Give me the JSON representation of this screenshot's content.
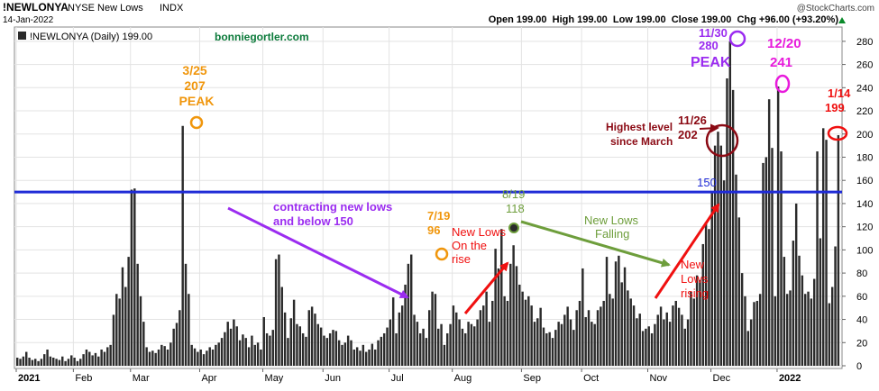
{
  "header": {
    "symbol": "!NEWLONYA",
    "exchange": "NYSE New Lows",
    "type": "INDX",
    "date": "14-Jan-2022",
    "copyright": "@StockCharts.com",
    "ohlc_text": "Open 199.00  High 199.00  Low 199.00  Close 199.00  Chg +96.00 (+93.20%)",
    "legend": "!NEWLONYA (Daily) 199.00",
    "watermark": "bonniegortler.com"
  },
  "colors": {
    "bars": "#2b2b2b",
    "hline": "#1f2bd6",
    "orange": "#f0960c",
    "purple": "#9b2cf0",
    "magenta": "#e81adc",
    "red": "#f01010",
    "darkred": "#8b0a14",
    "green": "#6e9e3c",
    "ma_green": "#0b7a3a"
  },
  "chart_data": {
    "type": "bar",
    "title": "!NEWLONYA NYSE New Lows INDX",
    "series_name": "!NEWLONYA (Daily)",
    "ylim": [
      0,
      290
    ],
    "yticks": [
      0,
      20,
      40,
      60,
      80,
      100,
      120,
      140,
      160,
      180,
      200,
      220,
      240,
      260,
      280
    ],
    "x_labels": [
      "2021",
      "Feb",
      "Mar",
      "Apr",
      "May",
      "Jun",
      "Jul",
      "Aug",
      "Sep",
      "Oct",
      "Nov",
      "Dec",
      "2022"
    ],
    "x_label_days": [
      0,
      19,
      38,
      61,
      82,
      102,
      124,
      145,
      168,
      188,
      210,
      231,
      253
    ],
    "hline": {
      "value": 150,
      "label": "150"
    },
    "values": [
      7,
      6,
      8,
      12,
      7,
      5,
      6,
      4,
      6,
      10,
      14,
      8,
      7,
      6,
      5,
      8,
      4,
      6,
      9,
      7,
      4,
      6,
      10,
      14,
      12,
      9,
      11,
      8,
      14,
      12,
      16,
      18,
      44,
      62,
      58,
      85,
      68,
      94,
      152,
      153,
      88,
      60,
      38,
      16,
      12,
      13,
      11,
      14,
      18,
      17,
      14,
      20,
      32,
      37,
      48,
      207,
      88,
      62,
      18,
      15,
      12,
      14,
      10,
      13,
      16,
      14,
      18,
      20,
      24,
      29,
      38,
      32,
      40,
      34,
      22,
      27,
      24,
      16,
      26,
      18,
      20,
      14,
      42,
      28,
      26,
      31,
      92,
      96,
      68,
      46,
      24,
      41,
      57,
      36,
      34,
      28,
      25,
      48,
      51,
      45,
      36,
      33,
      26,
      24,
      28,
      31,
      30,
      22,
      18,
      20,
      26,
      22,
      14,
      16,
      13,
      18,
      12,
      14,
      19,
      14,
      22,
      25,
      28,
      33,
      40,
      59,
      28,
      46,
      52,
      70,
      88,
      96,
      44,
      38,
      28,
      32,
      24,
      48,
      64,
      62,
      32,
      36,
      18,
      28,
      36,
      52,
      46,
      40,
      32,
      28,
      38,
      36,
      34,
      40,
      48,
      52,
      64,
      38,
      56,
      101,
      84,
      118,
      60,
      56,
      88,
      104,
      86,
      70,
      64,
      57,
      60,
      52,
      38,
      41,
      50,
      33,
      28,
      29,
      24,
      31,
      38,
      36,
      44,
      51,
      40,
      31,
      48,
      56,
      84,
      42,
      48,
      38,
      36,
      48,
      51,
      56,
      94,
      62,
      58,
      90,
      95,
      72,
      85,
      65,
      58,
      52,
      41,
      45,
      30,
      32,
      34,
      28,
      36,
      44,
      51,
      40,
      46,
      38,
      52,
      56,
      50,
      44,
      32,
      40,
      64,
      58,
      78,
      74,
      105,
      124,
      118,
      150,
      190,
      202,
      190,
      160,
      248,
      280,
      238,
      165,
      128,
      80,
      60,
      30,
      40,
      55,
      56,
      62,
      175,
      180,
      230,
      188,
      60,
      241,
      185,
      94,
      62,
      65,
      108,
      140,
      95,
      78,
      62,
      64,
      58,
      75,
      185,
      110,
      205,
      195,
      54,
      68,
      103,
      199
    ],
    "annotations": [
      {
        "text": [
          "3/25",
          "207",
          "PEAK"
        ],
        "color": "orange"
      },
      {
        "text": [
          "contracting new lows",
          "and below 150"
        ],
        "color": "purple"
      },
      {
        "text": [
          "7/19",
          "96"
        ],
        "color": "orange"
      },
      {
        "text": [
          "New Lows",
          "On the",
          "rise"
        ],
        "color": "red"
      },
      {
        "text": [
          "8/19",
          "118"
        ],
        "color": "green"
      },
      {
        "text": [
          "New Lows",
          "Falling"
        ],
        "color": "green"
      },
      {
        "text": [
          "New",
          "Lows",
          "rising"
        ],
        "color": "red"
      },
      {
        "text": [
          "Highest level",
          "since March"
        ],
        "color": "darkred"
      },
      {
        "text": [
          "11/26",
          "202"
        ],
        "color": "darkred"
      },
      {
        "text": [
          "11/30",
          "280"
        ],
        "color": "purple"
      },
      {
        "text": [
          "PEAK"
        ],
        "color": "purple"
      },
      {
        "text": [
          "12/20",
          "241"
        ],
        "color": "magenta"
      },
      {
        "text": [
          "1/14",
          "199"
        ],
        "color": "red"
      }
    ]
  }
}
